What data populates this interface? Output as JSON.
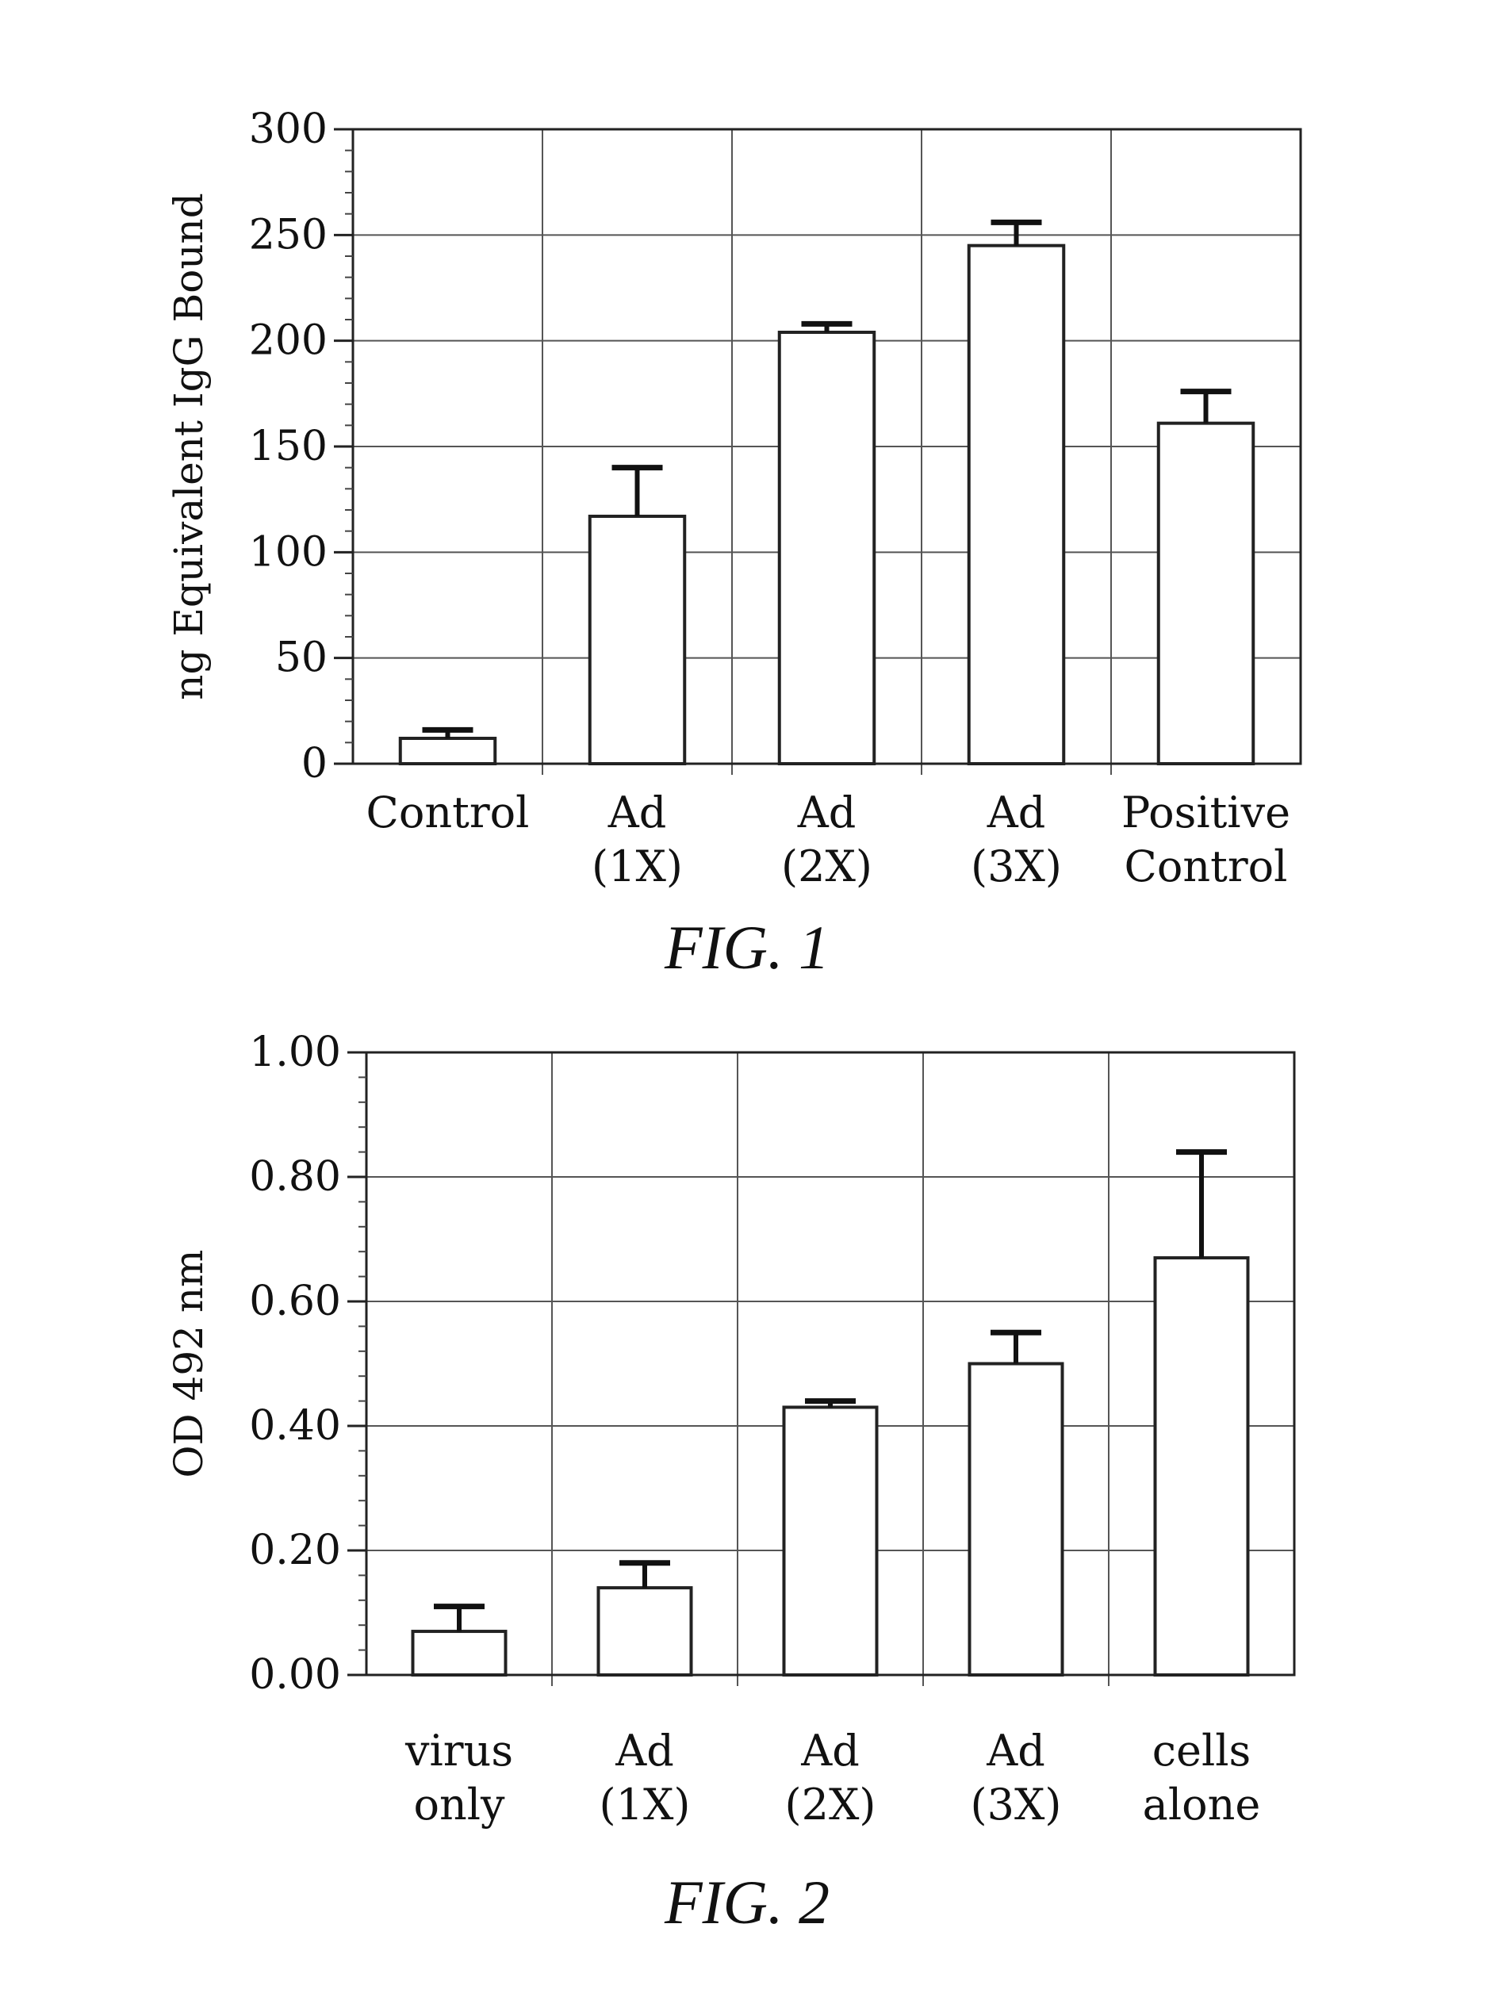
{
  "chart_data": [
    {
      "type": "bar",
      "caption": "FIG. 1",
      "categories": [
        [
          "Control"
        ],
        [
          "Ad",
          "(1X)"
        ],
        [
          "Ad",
          "(2X)"
        ],
        [
          "Ad",
          "(3X)"
        ],
        [
          "Positive",
          "Control"
        ]
      ],
      "values": [
        12,
        117,
        204,
        245,
        161
      ],
      "error_upper": [
        16,
        140,
        208,
        256,
        176
      ],
      "ylabel": "ng Equivalent IgG Bound",
      "ylim": [
        0,
        300
      ],
      "yticks": [
        0,
        50,
        100,
        150,
        200,
        250,
        300
      ],
      "ytick_labels": [
        "0",
        "50",
        "100",
        "150",
        "200",
        "250",
        "300"
      ],
      "grid": true
    },
    {
      "type": "bar",
      "caption": "FIG. 2",
      "categories": [
        [
          "virus",
          "only"
        ],
        [
          "Ad",
          "(1X)"
        ],
        [
          "Ad",
          "(2X)"
        ],
        [
          "Ad",
          "(3X)"
        ],
        [
          "cells",
          "alone"
        ]
      ],
      "values": [
        0.07,
        0.14,
        0.43,
        0.5,
        0.67
      ],
      "error_upper": [
        0.11,
        0.18,
        0.44,
        0.55,
        0.84
      ],
      "ylabel": "OD 492 nm",
      "ylim": [
        0,
        1.0
      ],
      "yticks": [
        0,
        0.2,
        0.4,
        0.6,
        0.8,
        1.0
      ],
      "ytick_labels": [
        "0.00",
        "0.20",
        "0.40",
        "0.60",
        "0.80",
        "1.00"
      ],
      "grid": true
    }
  ]
}
